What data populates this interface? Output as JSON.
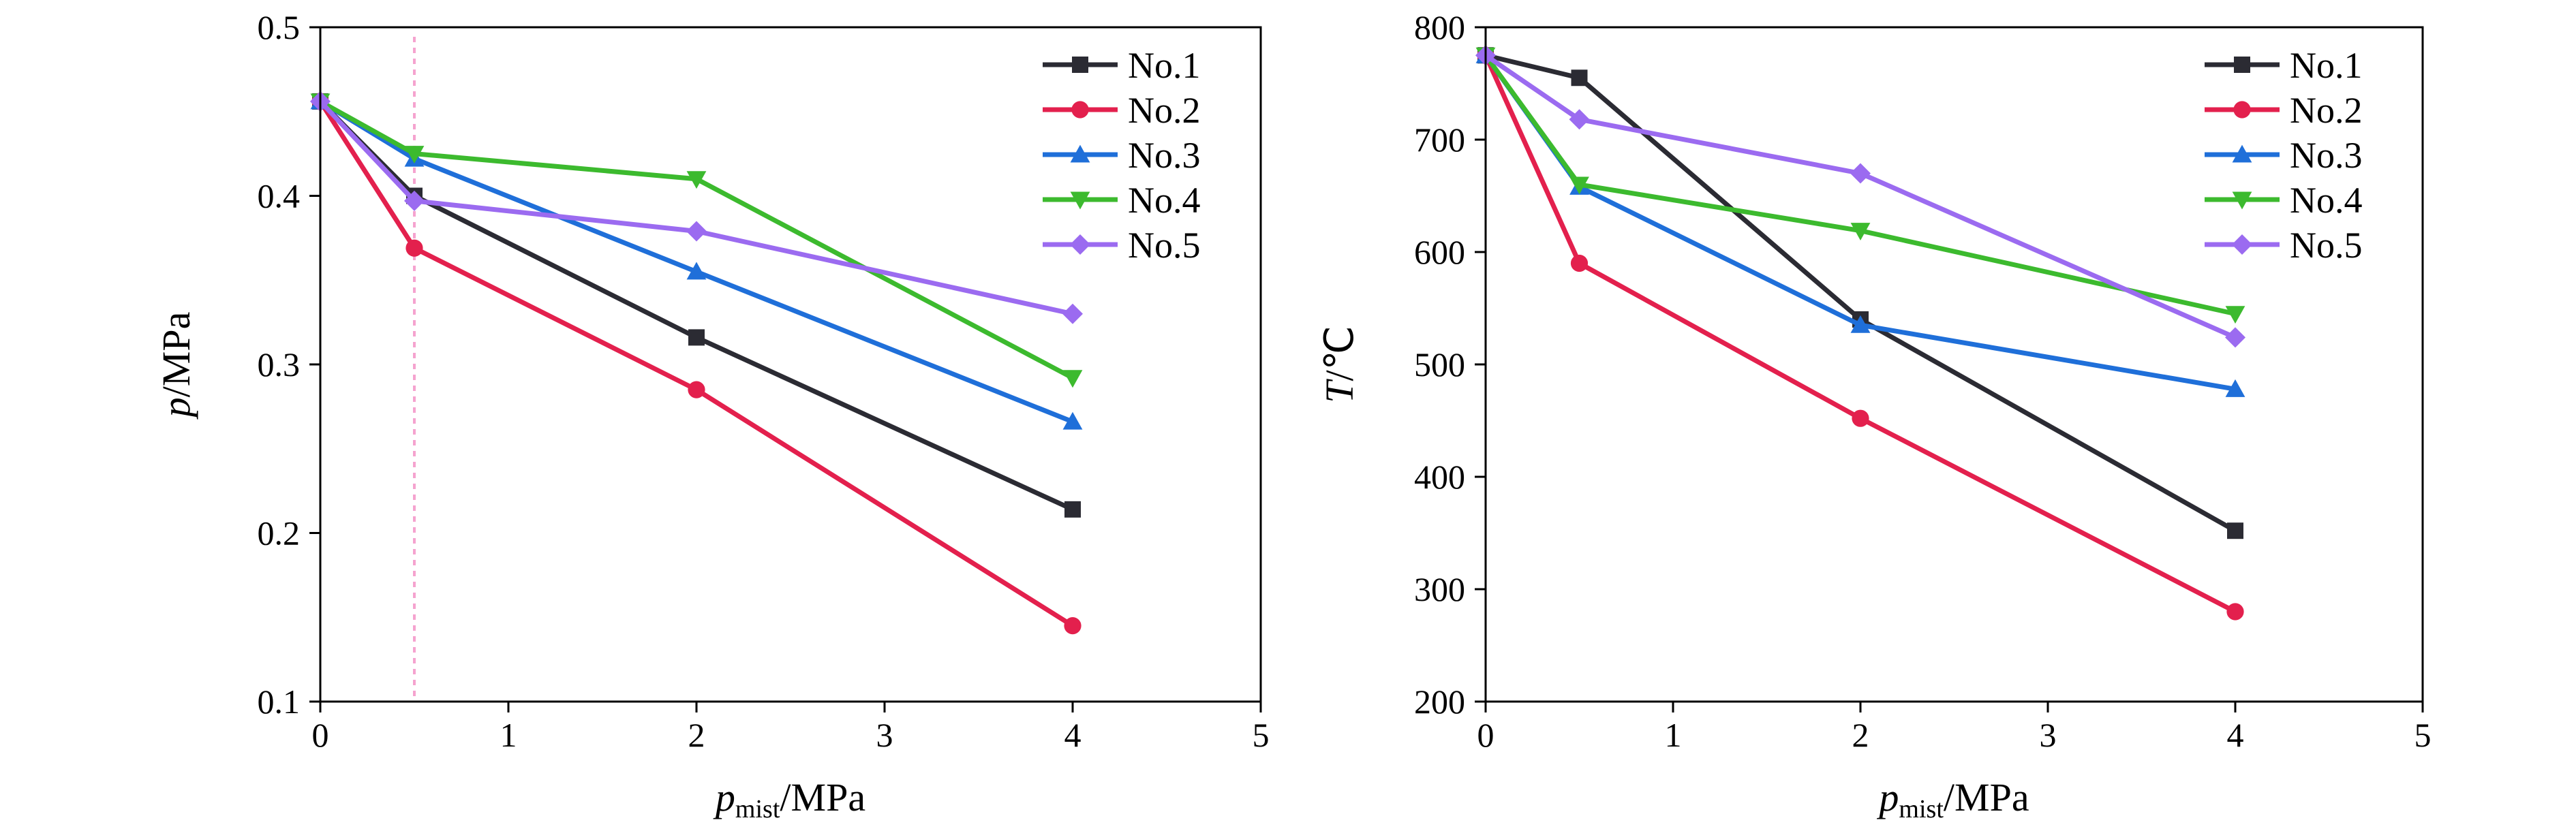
{
  "chart_data": [
    {
      "type": "line",
      "ylabel_var": "p",
      "ylabel_unit": "/MPa",
      "xlabel_var": "p",
      "xlabel_sub": "mist",
      "xlabel_unit": "/MPa",
      "xlim": [
        0,
        5
      ],
      "ylim": [
        0.1,
        0.5
      ],
      "xticks": [
        "0",
        "1",
        "2",
        "3",
        "4",
        "5"
      ],
      "yticks": [
        "0.1",
        "0.2",
        "0.3",
        "0.4",
        "0.5"
      ],
      "vline_x": 0.5,
      "legend_position": "top-right",
      "grid": false,
      "x": [
        0,
        0.5,
        2,
        4
      ],
      "series": [
        {
          "name": "No.1",
          "color": "#2b2b33",
          "marker": "square",
          "values": [
            0.456,
            0.4,
            0.316,
            0.214
          ]
        },
        {
          "name": "No.2",
          "color": "#e3204d",
          "marker": "circle",
          "values": [
            0.456,
            0.369,
            0.285,
            0.145
          ]
        },
        {
          "name": "No.3",
          "color": "#1f6fd9",
          "marker": "triangle-up",
          "values": [
            0.456,
            0.422,
            0.355,
            0.266
          ]
        },
        {
          "name": "No.4",
          "color": "#3cba2e",
          "marker": "triangle-down",
          "values": [
            0.456,
            0.425,
            0.41,
            0.292
          ]
        },
        {
          "name": "No.5",
          "color": "#9b6bf0",
          "marker": "diamond",
          "values": [
            0.456,
            0.397,
            0.379,
            0.33
          ]
        }
      ]
    },
    {
      "type": "line",
      "ylabel_var": "T",
      "ylabel_unit": "/℃",
      "xlabel_var": "p",
      "xlabel_sub": "mist",
      "xlabel_unit": "/MPa",
      "xlim": [
        0,
        5
      ],
      "ylim": [
        200,
        800
      ],
      "xticks": [
        "0",
        "1",
        "2",
        "3",
        "4",
        "5"
      ],
      "yticks": [
        "200",
        "300",
        "400",
        "500",
        "600",
        "700",
        "800"
      ],
      "legend_position": "top-right",
      "grid": false,
      "x": [
        0,
        0.5,
        2,
        4
      ],
      "series": [
        {
          "name": "No.1",
          "color": "#2b2b33",
          "marker": "square",
          "values": [
            775,
            755,
            540,
            352
          ]
        },
        {
          "name": "No.2",
          "color": "#e3204d",
          "marker": "circle",
          "values": [
            775,
            590,
            452,
            280
          ]
        },
        {
          "name": "No.3",
          "color": "#1f6fd9",
          "marker": "triangle-up",
          "values": [
            775,
            658,
            535,
            478
          ]
        },
        {
          "name": "No.4",
          "color": "#3cba2e",
          "marker": "triangle-down",
          "values": [
            775,
            660,
            619,
            545
          ]
        },
        {
          "name": "No.5",
          "color": "#9b6bf0",
          "marker": "diamond",
          "values": [
            775,
            718,
            670,
            524
          ]
        }
      ]
    }
  ]
}
